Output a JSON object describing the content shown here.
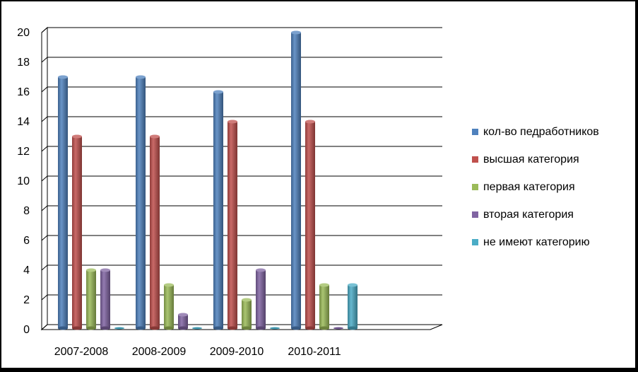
{
  "chart_data": {
    "type": "bar",
    "categories": [
      "2007-2008",
      "2008-2009",
      "2009-2010",
      "2010-2011"
    ],
    "series": [
      {
        "name": "кол-во педработников",
        "values": [
          17,
          17,
          16,
          20
        ],
        "color": "#4F81BD"
      },
      {
        "name": "высшая категория",
        "values": [
          13,
          13,
          14,
          14
        ],
        "color": "#C0504D"
      },
      {
        "name": "первая категория",
        "values": [
          4,
          3,
          2,
          3
        ],
        "color": "#9BBB59"
      },
      {
        "name": "вторая категория",
        "values": [
          4,
          1,
          4,
          0
        ],
        "color": "#8064A2"
      },
      {
        "name": "не имеют категорию",
        "values": [
          0,
          0,
          0,
          3
        ],
        "color": "#4BACC6"
      }
    ],
    "y_ticks": [
      "0",
      "2",
      "4",
      "6",
      "8",
      "10",
      "12",
      "14",
      "16",
      "18",
      "20"
    ],
    "ylim": [
      0,
      20
    ],
    "grid": true,
    "legend_position": "right"
  }
}
